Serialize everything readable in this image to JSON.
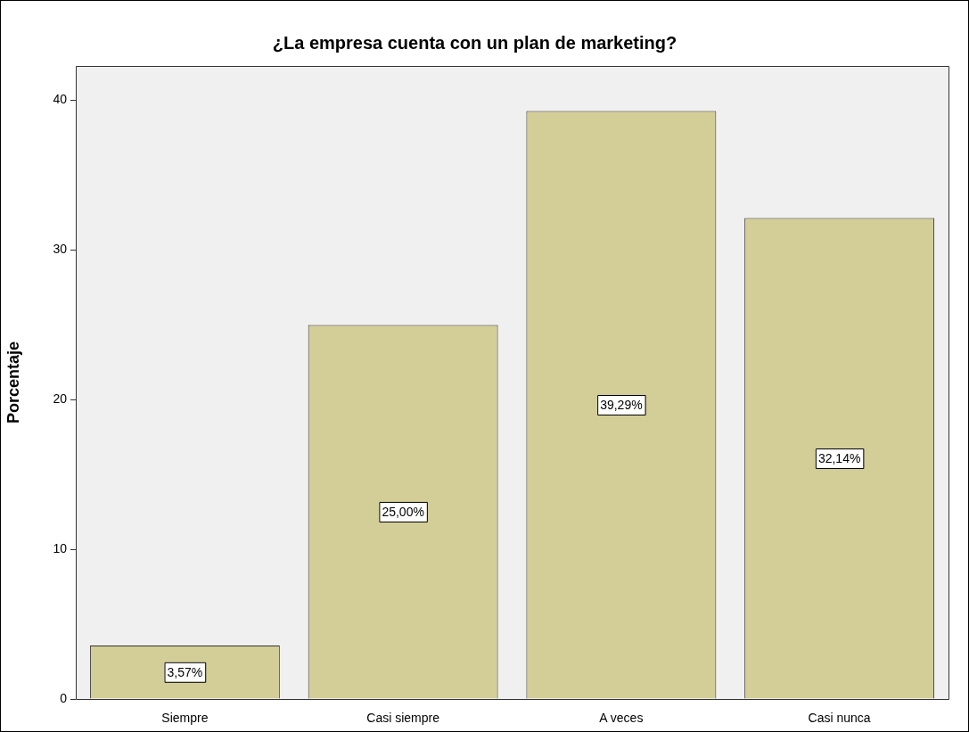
{
  "chart_data": {
    "type": "bar",
    "title": "¿La empresa cuenta con un plan de marketing?",
    "ylabel": "Porcentaje",
    "categories": [
      "Siempre",
      "Casi siempre",
      "A veces",
      "Casi nunca"
    ],
    "values": [
      3.57,
      25,
      39.29,
      32.14
    ],
    "value_labels": [
      "3,57%",
      "25,00%",
      "39,29%",
      "32,14%"
    ],
    "color": "#d3ce97",
    "ylim": [
      0,
      42.3
    ],
    "yticks": [
      0,
      10,
      20,
      30,
      40
    ]
  }
}
